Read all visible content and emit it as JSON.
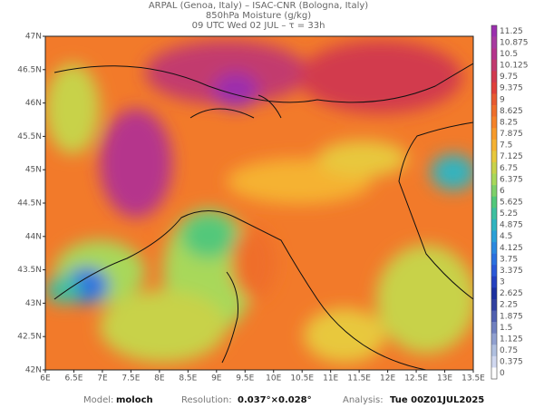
{
  "header": {
    "line1": "ARPAL (Genoa, Italy)  –  ISAC-CNR (Bologna, Italy)",
    "line2": "850hPa Moisture (g/kg)",
    "line3": "09 UTC Wed 02 JUL  –  τ = 33h"
  },
  "map": {
    "lon_labels": [
      "6E",
      "6.5E",
      "7E",
      "7.5E",
      "8E",
      "8.5E",
      "9E",
      "9.5E",
      "10E",
      "10.5E",
      "11E",
      "11.5E",
      "12E",
      "12.5E",
      "13E",
      "13.5E"
    ],
    "lat_labels": [
      "47N",
      "46.5N",
      "46N",
      "45.5N",
      "45N",
      "44.5N",
      "44N",
      "43.5N",
      "43N",
      "42.5N",
      "42N"
    ]
  },
  "colorbar": {
    "levels": [
      11.25,
      10.875,
      10.5,
      10.125,
      9.75,
      9.375,
      9,
      8.625,
      8.25,
      7.875,
      7.5,
      7.125,
      6.75,
      6.375,
      6,
      5.625,
      5.25,
      4.875,
      4.5,
      4.125,
      3.75,
      3.375,
      3,
      2.625,
      2.25,
      1.875,
      1.5,
      1.125,
      0.75,
      0.375,
      0
    ],
    "colors": [
      "#9b2fae",
      "#a83aa0",
      "#b5348c",
      "#c23a6e",
      "#d23a4e",
      "#e0403a",
      "#e85a30",
      "#ef6e2a",
      "#f58228",
      "#f79a2a",
      "#f5b232",
      "#e8c83c",
      "#c8d24a",
      "#a8d85a",
      "#7ed06a",
      "#52c87a",
      "#3ec0a0",
      "#30b4c0",
      "#2aa0d8",
      "#2a88e0",
      "#2a70e0",
      "#2a58d8",
      "#2440c0",
      "#1c30a0",
      "#3040a0",
      "#5060b0",
      "#7080c0",
      "#90a0d0",
      "#b0c0e0",
      "#d0d8f0",
      "#ffffff"
    ]
  },
  "footer": {
    "model_label": "Model:",
    "model": "moloch",
    "resolution_label": "Resolution:",
    "resolution": "0.037°×0.028°",
    "analysis_label": "Analysis:",
    "analysis": "Tue 00Z01JUL2025"
  }
}
